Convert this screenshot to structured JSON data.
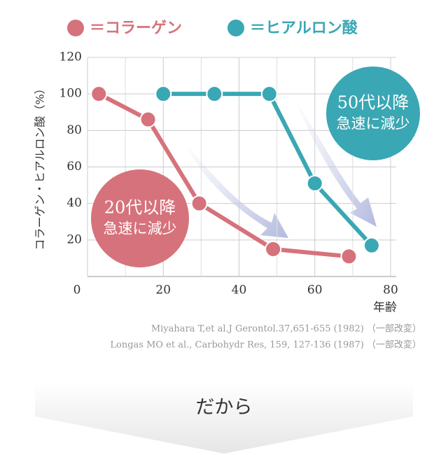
{
  "chart_data": {
    "type": "line",
    "y_label": "コラーゲン・ヒアルロン酸（%）",
    "x_label": "年齢",
    "xlim": [
      0,
      80
    ],
    "xticks": [
      0,
      20,
      40,
      60,
      80
    ],
    "ylim": [
      0,
      120
    ],
    "yticks": [
      20,
      40,
      60,
      80,
      100,
      120
    ],
    "grid": true,
    "series": [
      {
        "name": "＝コラーゲン",
        "color": "#d6727b",
        "x": [
          3,
          16,
          29.5,
          49,
          69
        ],
        "values": [
          100,
          86,
          40,
          15,
          11
        ]
      },
      {
        "name": "＝ヒアルロン酸",
        "color": "#3aa7b4",
        "x": [
          20,
          33.5,
          48,
          60,
          75
        ],
        "values": [
          100,
          100,
          100,
          51,
          17
        ]
      }
    ],
    "annotations": [
      {
        "lines": [
          "20代以降",
          "急速に減少"
        ],
        "color": "#d6727b"
      },
      {
        "lines": [
          "50代以降",
          "急速に減少"
        ],
        "color": "#3aa7b4"
      }
    ]
  },
  "sources": [
    "Miyahara T,et al.J Gerontol.37,651-655 (1982) （一部改変）",
    "Longas MO et al., Carbohydr Res, 159, 127-136 (1987) （一部改変）"
  ],
  "cta": "だから"
}
